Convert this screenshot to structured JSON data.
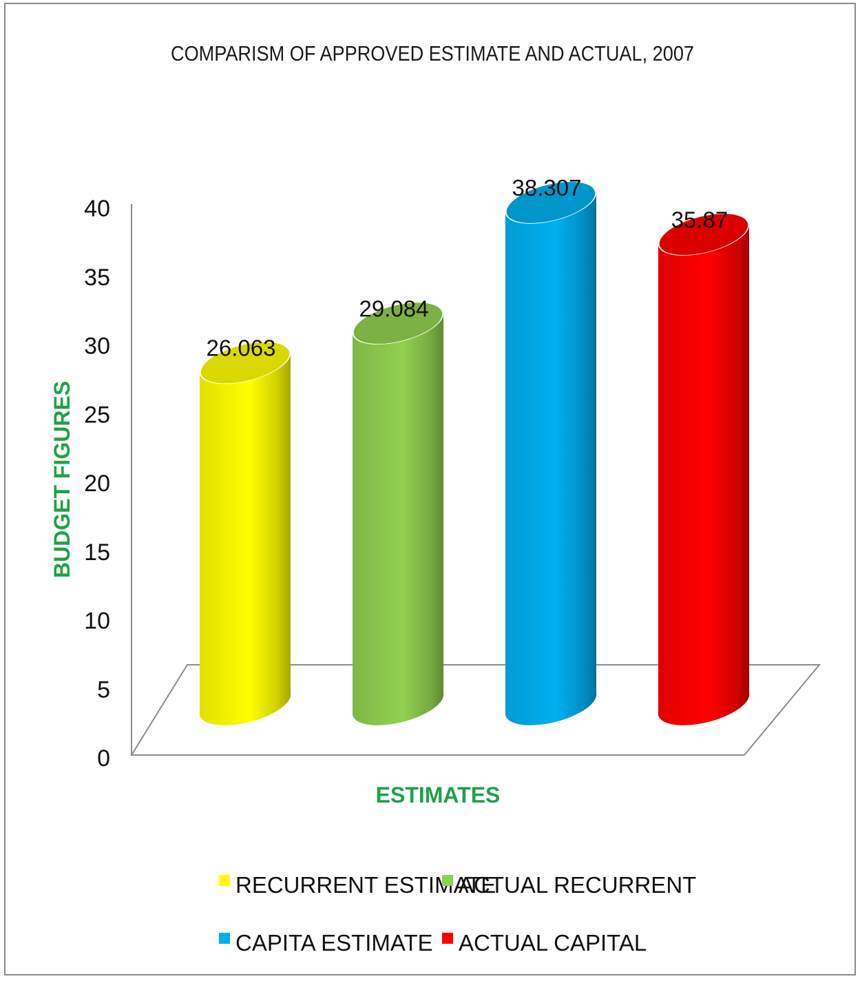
{
  "chart_data": {
    "type": "bar",
    "title": "COMPARISM OF APPROVED ESTIMATE AND ACTUAL, 2007",
    "xlabel": "ESTIMATES",
    "ylabel": "BUDGET FIGURES",
    "ylim": [
      0,
      40
    ],
    "yticks": [
      "0",
      "5",
      "10",
      "15",
      "20",
      "25",
      "30",
      "35",
      "40"
    ],
    "grid": false,
    "legend_position": "bottom",
    "series": [
      {
        "name": "RECURRENT ESTIMATE",
        "value": 26.063,
        "label": "26.063",
        "color": "#ffff00"
      },
      {
        "name": "ACTUAL RECURRENT",
        "value": 29.084,
        "label": "29.084",
        "color": "#92d050"
      },
      {
        "name": "CAPITA ESTIMATE",
        "value": 38.307,
        "label": "38.307",
        "color": "#00b0f0"
      },
      {
        "name": "ACTUAL CAPITAL",
        "value": 35.87,
        "label": "35.87",
        "color": "#ff0000"
      }
    ]
  }
}
